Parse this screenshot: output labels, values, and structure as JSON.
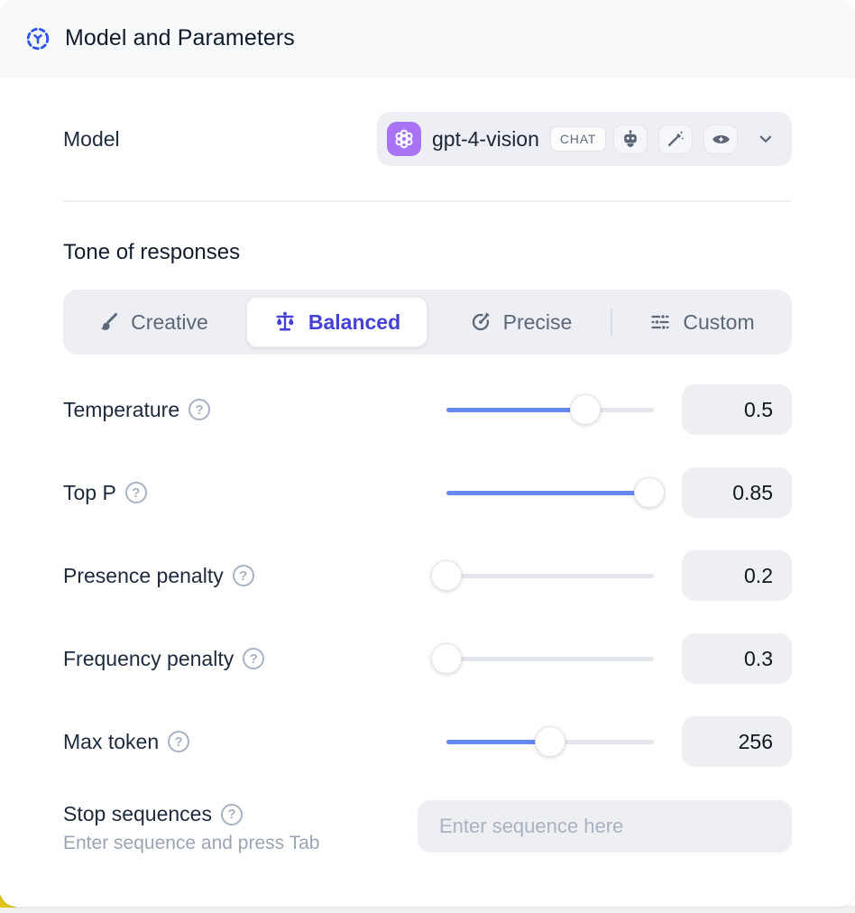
{
  "header": {
    "title": "Model and Parameters"
  },
  "model": {
    "label": "Model",
    "name": "gpt-4-vision",
    "badge": "CHAT",
    "capability_icons": [
      "robot-icon",
      "magic-wand-icon",
      "vision-eye-icon"
    ]
  },
  "tone": {
    "title": "Tone of responses",
    "tabs": [
      {
        "label": "Creative",
        "icon": "brush-icon",
        "selected": false
      },
      {
        "label": "Balanced",
        "icon": "balance-scale-icon",
        "selected": true
      },
      {
        "label": "Precise",
        "icon": "target-icon",
        "selected": false
      },
      {
        "label": "Custom",
        "icon": "sliders-icon",
        "selected": false
      }
    ]
  },
  "parameters": [
    {
      "label": "Temperature",
      "value": "0.5",
      "percent": 67
    },
    {
      "label": "Top P",
      "value": "0.85",
      "percent": 98
    },
    {
      "label": "Presence penalty",
      "value": "0.2",
      "percent": 0
    },
    {
      "label": "Frequency penalty",
      "value": "0.3",
      "percent": 0
    },
    {
      "label": "Max token",
      "value": "256",
      "percent": 50
    }
  ],
  "stop_sequences": {
    "label": "Stop sequences",
    "helper": "Enter sequence and press Tab",
    "placeholder": "Enter sequence here"
  },
  "colors": {
    "accent_indigo": "#4540d6",
    "slider_blue": "#6787f1",
    "avatar_purple": "#a873f5",
    "header_bg": "#f8f9fb",
    "control_bg": "#edeff4",
    "corner_accent_yellow": "#e0c418"
  }
}
